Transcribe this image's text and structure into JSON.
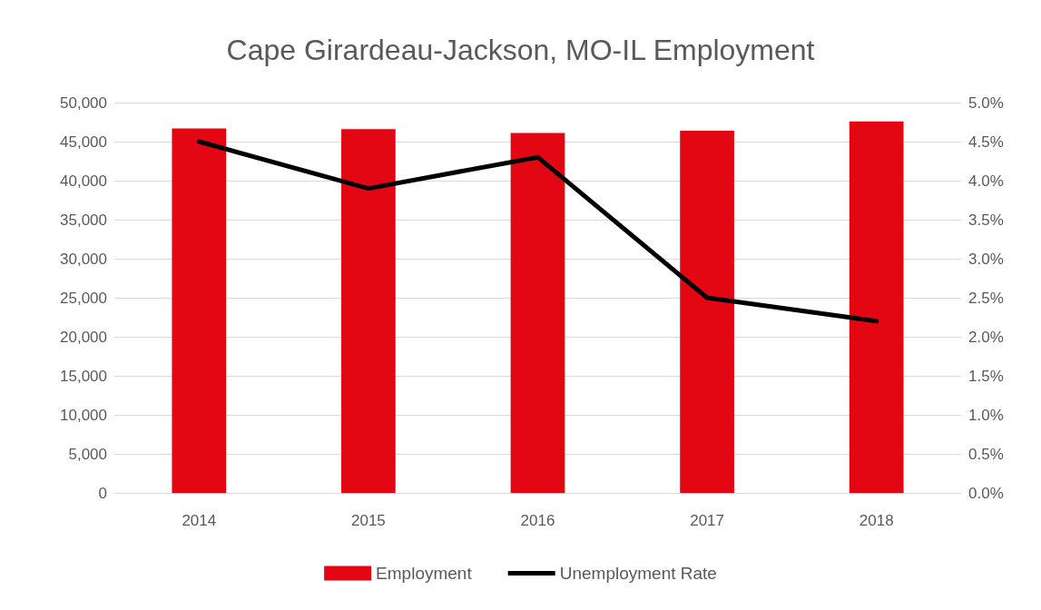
{
  "chart_data": {
    "type": "bar",
    "title": "Cape Girardeau-Jackson, MO-IL Employment",
    "categories": [
      "2014",
      "2015",
      "2016",
      "2017",
      "2018"
    ],
    "series": [
      {
        "name": "Employment",
        "color": "#e30613",
        "values": [
          46700,
          46600,
          46100,
          46400,
          47600
        ]
      },
      {
        "name": "Unemployment Rate",
        "type": "line",
        "axis": "y2",
        "color": "#000000",
        "values": [
          4.5,
          3.9,
          4.3,
          2.5,
          2.2
        ]
      }
    ],
    "ylim": [
      0,
      50000
    ],
    "yticks": [
      {
        "value": 0,
        "label": "0"
      },
      {
        "value": 5000,
        "label": "5,000"
      },
      {
        "value": 10000,
        "label": "10,000"
      },
      {
        "value": 15000,
        "label": "15,000"
      },
      {
        "value": 20000,
        "label": "20,000"
      },
      {
        "value": 25000,
        "label": "25,000"
      },
      {
        "value": 30000,
        "label": "30,000"
      },
      {
        "value": 35000,
        "label": "35,000"
      },
      {
        "value": 40000,
        "label": "40,000"
      },
      {
        "value": 45000,
        "label": "45,000"
      },
      {
        "value": 50000,
        "label": "50,000"
      }
    ],
    "y2lim": [
      0,
      5
    ],
    "y2ticks": [
      {
        "value": 0,
        "label": "0.0%"
      },
      {
        "value": 0.5,
        "label": "0.5%"
      },
      {
        "value": 1,
        "label": "1.0%"
      },
      {
        "value": 1.5,
        "label": "1.5%"
      },
      {
        "value": 2,
        "label": "2.0%"
      },
      {
        "value": 2.5,
        "label": "2.5%"
      },
      {
        "value": 3,
        "label": "3.0%"
      },
      {
        "value": 3.5,
        "label": "3.5%"
      },
      {
        "value": 4,
        "label": "4.0%"
      },
      {
        "value": 4.5,
        "label": "4.5%"
      },
      {
        "value": 5,
        "label": "5.0%"
      }
    ],
    "grid": "y",
    "legend": "bottom",
    "marker": "none",
    "line_style": "solid"
  }
}
